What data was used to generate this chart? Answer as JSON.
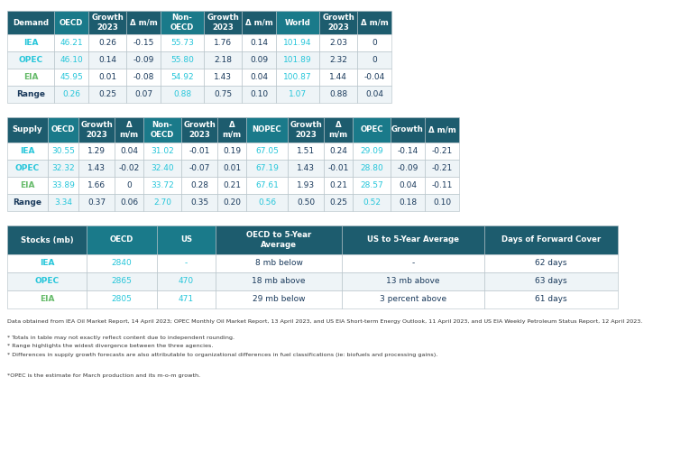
{
  "header_bg": "#1d5c6e",
  "header_teal_bg": "#1a7a8a",
  "header_text": "#ffffff",
  "cyan_text": "#26c6da",
  "teal_label": "#26c6da",
  "green_eia": "#66bb6a",
  "dark_text": "#1a3a5c",
  "border_color": "#b0bec5",
  "row_bg_white": "#ffffff",
  "row_bg_light": "#eef4f7",
  "demand_headers": [
    "Demand",
    "OECD",
    "Growth\n2023",
    "Δ m/m",
    "Non-\nOECD",
    "Growth\n2023",
    "Δ m/m",
    "World",
    "Growth\n2023",
    "Δ m/m"
  ],
  "demand_rows": [
    [
      "IEA",
      "46.21",
      "0.26",
      "-0.15",
      "55.73",
      "1.76",
      "0.14",
      "101.94",
      "2.03",
      "0"
    ],
    [
      "OPEC",
      "46.10",
      "0.14",
      "-0.09",
      "55.80",
      "2.18",
      "0.09",
      "101.89",
      "2.32",
      "0"
    ],
    [
      "EIA",
      "45.95",
      "0.01",
      "-0.08",
      "54.92",
      "1.43",
      "0.04",
      "100.87",
      "1.44",
      "-0.04"
    ],
    [
      "Range",
      "0.26",
      "0.25",
      "0.07",
      "0.88",
      "0.75",
      "0.10",
      "1.07",
      "0.88",
      "0.04"
    ]
  ],
  "demand_cyan_cols": [
    1,
    4,
    7
  ],
  "demand_col_widths": [
    52,
    38,
    42,
    38,
    48,
    42,
    38,
    48,
    42,
    38
  ],
  "supply_headers": [
    "Supply",
    "OECD",
    "Growth\n2023",
    "Δ\nm/m",
    "Non-\nOECD",
    "Growth\n2023",
    "Δ\nm/m",
    "NOPEC",
    "Growth\n2023",
    "Δ\nm/m",
    "OPEC",
    "Growth",
    "Δ m/m"
  ],
  "supply_rows": [
    [
      "IEA",
      "30.55",
      "1.29",
      "0.04",
      "31.02",
      "-0.01",
      "0.19",
      "67.05",
      "1.51",
      "0.24",
      "29.09",
      "-0.14",
      "-0.21"
    ],
    [
      "OPEC",
      "32.32",
      "1.43",
      "-0.02",
      "32.40",
      "-0.07",
      "0.01",
      "67.19",
      "1.43",
      "-0.01",
      "28.80",
      "-0.09",
      "-0.21"
    ],
    [
      "EIA",
      "33.89",
      "1.66",
      "0",
      "33.72",
      "0.28",
      "0.21",
      "67.61",
      "1.93",
      "0.21",
      "28.57",
      "0.04",
      "-0.11"
    ],
    [
      "Range",
      "3.34",
      "0.37",
      "0.06",
      "2.70",
      "0.35",
      "0.20",
      "0.56",
      "0.50",
      "0.25",
      "0.52",
      "0.18",
      "0.10"
    ]
  ],
  "supply_cyan_cols": [
    1,
    4,
    7,
    10
  ],
  "supply_col_widths": [
    45,
    34,
    40,
    32,
    42,
    40,
    32,
    46,
    40,
    32,
    42,
    38,
    38
  ],
  "stocks_headers": [
    "Stocks (mb)",
    "OECD",
    "US",
    "OECD to 5-Year\nAverage",
    "US to 5-Year Average",
    "Days of Forward Cover"
  ],
  "stocks_rows": [
    [
      "IEA",
      "2840",
      "-",
      "8 mb below",
      "-",
      "62 days"
    ],
    [
      "OPEC",
      "2865",
      "470",
      "18 mb above",
      "13 mb above",
      "63 days"
    ],
    [
      "EIA",
      "2805",
      "471",
      "29 mb below",
      "3 percent above",
      "61 days"
    ]
  ],
  "stocks_cyan_cols": [
    1,
    2
  ],
  "stocks_col_widths": [
    88,
    78,
    65,
    140,
    158,
    148
  ],
  "row_labels_color": {
    "IEA": "#26c6da",
    "OPEC": "#26c6da",
    "EIA": "#66bb6a",
    "Range": "#1a3a5c"
  },
  "footnote1": "Data obtained from IEA Oil Market Report, 14 April 2023; OPEC Monthly Oil Market Report, 13 April 2023, and US EIA Short-term Energy Outlook, 11 April 2023, and US EIA Weekly Petroleum Status Report, 12 April 2023.",
  "footnotes": [
    "* Totals in table may not exactly reflect content due to independent rounding.",
    "* Range highlights the widest divergence between the three agencies.",
    "* Differences in supply growth forecasts are also attributable to organizational differences in fuel classifications (ie: biofuels and processing gains).",
    "",
    "*OPEC is the estimate for March production and its m-o-m growth."
  ]
}
